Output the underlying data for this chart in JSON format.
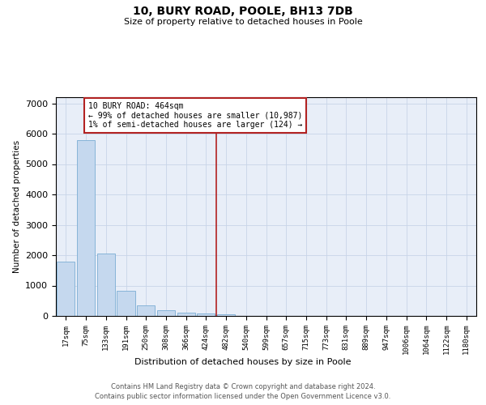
{
  "title": "10, BURY ROAD, POOLE, BH13 7DB",
  "subtitle": "Size of property relative to detached houses in Poole",
  "xlabel": "Distribution of detached houses by size in Poole",
  "ylabel": "Number of detached properties",
  "bar_labels": [
    "17sqm",
    "75sqm",
    "133sqm",
    "191sqm",
    "250sqm",
    "308sqm",
    "366sqm",
    "424sqm",
    "482sqm",
    "540sqm",
    "599sqm",
    "657sqm",
    "715sqm",
    "773sqm",
    "831sqm",
    "889sqm",
    "947sqm",
    "1006sqm",
    "1064sqm",
    "1122sqm",
    "1180sqm"
  ],
  "bar_values": [
    1780,
    5780,
    2060,
    820,
    340,
    185,
    110,
    90,
    55,
    5,
    5,
    5,
    5,
    5,
    5,
    5,
    5,
    5,
    5,
    5,
    5
  ],
  "bar_color": "#c5d8ee",
  "bar_edge_color": "#7aadd4",
  "vline_x_idx": 8,
  "vline_color": "#b22222",
  "annotation_text": "10 BURY ROAD: 464sqm\n← 99% of detached houses are smaller (10,987)\n1% of semi-detached houses are larger (124) →",
  "annotation_box_color": "#b22222",
  "ylim": [
    0,
    7200
  ],
  "yticks": [
    0,
    1000,
    2000,
    3000,
    4000,
    5000,
    6000,
    7000
  ],
  "grid_color": "#c8d4e8",
  "background_color": "#e8eef8",
  "footer_line1": "Contains HM Land Registry data © Crown copyright and database right 2024.",
  "footer_line2": "Contains public sector information licensed under the Open Government Licence v3.0."
}
